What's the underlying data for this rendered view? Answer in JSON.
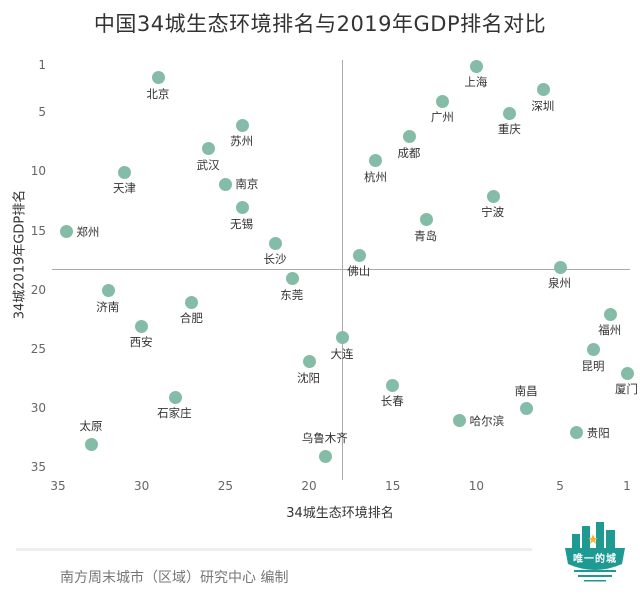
{
  "title": "中国34城生态环境排名与2019年GDP排名对比",
  "footer": {
    "source": "南方周末城市（区域）研究中心   编制",
    "logo_text": "唯一的城",
    "logo_icon": "city-skyline-logo"
  },
  "colors": {
    "dot": "#85bca7",
    "quadrant_line": "#aaaaaa",
    "logo_teal": "#1e9a93",
    "logo_star": "#f2b632"
  },
  "axes": {
    "x_label": "34城生态环境排名",
    "y_label": "34城2019年GDP排名",
    "x_ticks": [
      "35",
      "30",
      "25",
      "20",
      "15",
      "10",
      "5",
      "1"
    ],
    "y_ticks": [
      "1",
      "5",
      "10",
      "15",
      "20",
      "25",
      "30",
      "35"
    ]
  },
  "chart_data": {
    "type": "scatter",
    "title": "中国34城生态环境排名与2019年GDP排名对比",
    "xlabel": "34城生态环境排名",
    "ylabel": "34城2019年GDP排名",
    "xlim": [
      35,
      1
    ],
    "ylim": [
      35,
      1
    ],
    "x_reversed": true,
    "y_reversed": true,
    "x_ticks": [
      35,
      30,
      25,
      20,
      15,
      10,
      5,
      1
    ],
    "y_ticks": [
      1,
      5,
      10,
      15,
      20,
      25,
      30,
      35
    ],
    "quadrant_lines": {
      "x": 17.5,
      "y": 17.5
    },
    "grid": false,
    "legend": "none",
    "points": [
      {
        "city": "上海",
        "eco_rank": 10,
        "gdp_rank": 1
      },
      {
        "city": "北京",
        "eco_rank": 29,
        "gdp_rank": 2
      },
      {
        "city": "深圳",
        "eco_rank": 6,
        "gdp_rank": 3
      },
      {
        "city": "广州",
        "eco_rank": 12,
        "gdp_rank": 4
      },
      {
        "city": "重庆",
        "eco_rank": 8,
        "gdp_rank": 5
      },
      {
        "city": "苏州",
        "eco_rank": 24,
        "gdp_rank": 6
      },
      {
        "city": "成都",
        "eco_rank": 14,
        "gdp_rank": 7
      },
      {
        "city": "武汉",
        "eco_rank": 26,
        "gdp_rank": 8
      },
      {
        "city": "杭州",
        "eco_rank": 16,
        "gdp_rank": 9
      },
      {
        "city": "天津",
        "eco_rank": 31,
        "gdp_rank": 10
      },
      {
        "city": "南京",
        "eco_rank": 25,
        "gdp_rank": 11
      },
      {
        "city": "宁波",
        "eco_rank": 9,
        "gdp_rank": 12
      },
      {
        "city": "无锡",
        "eco_rank": 24,
        "gdp_rank": 13
      },
      {
        "city": "青岛",
        "eco_rank": 13,
        "gdp_rank": 14
      },
      {
        "city": "郑州",
        "eco_rank": 34.5,
        "gdp_rank": 15
      },
      {
        "city": "长沙",
        "eco_rank": 22,
        "gdp_rank": 16
      },
      {
        "city": "佛山",
        "eco_rank": 17,
        "gdp_rank": 17
      },
      {
        "city": "泉州",
        "eco_rank": 5,
        "gdp_rank": 18
      },
      {
        "city": "东莞",
        "eco_rank": 21,
        "gdp_rank": 19
      },
      {
        "city": "济南",
        "eco_rank": 32,
        "gdp_rank": 20
      },
      {
        "city": "合肥",
        "eco_rank": 27,
        "gdp_rank": 21
      },
      {
        "city": "福州",
        "eco_rank": 2,
        "gdp_rank": 22
      },
      {
        "city": "西安",
        "eco_rank": 30,
        "gdp_rank": 23
      },
      {
        "city": "大连",
        "eco_rank": 18,
        "gdp_rank": 24
      },
      {
        "city": "昆明",
        "eco_rank": 3,
        "gdp_rank": 25
      },
      {
        "city": "沈阳",
        "eco_rank": 20,
        "gdp_rank": 26
      },
      {
        "city": "厦门",
        "eco_rank": 1,
        "gdp_rank": 27
      },
      {
        "city": "长春",
        "eco_rank": 15,
        "gdp_rank": 28
      },
      {
        "city": "石家庄",
        "eco_rank": 28,
        "gdp_rank": 29
      },
      {
        "city": "南昌",
        "eco_rank": 7,
        "gdp_rank": 30
      },
      {
        "city": "哈尔滨",
        "eco_rank": 11,
        "gdp_rank": 31
      },
      {
        "city": "贵阳",
        "eco_rank": 4,
        "gdp_rank": 32
      },
      {
        "city": "太原",
        "eco_rank": 33,
        "gdp_rank": 33
      },
      {
        "city": "乌鲁木齐",
        "eco_rank": 19,
        "gdp_rank": 34
      }
    ]
  },
  "label_positions": {
    "上海": "below",
    "北京": "below",
    "深圳": "below",
    "广州": "below",
    "重庆": "below",
    "苏州": "below",
    "成都": "below",
    "武汉": "below",
    "杭州": "below",
    "天津": "below",
    "南京": "right",
    "宁波": "below",
    "无锡": "below",
    "青岛": "below",
    "郑州": "right",
    "长沙": "below",
    "佛山": "below",
    "泉州": "below",
    "东莞": "below",
    "济南": "below",
    "合肥": "below",
    "福州": "below",
    "西安": "below",
    "大连": "below",
    "昆明": "below",
    "沈阳": "below",
    "厦门": "below",
    "长春": "below",
    "石家庄": "below",
    "南昌": "above",
    "哈尔滨": "right",
    "贵阳": "right",
    "太原": "above",
    "乌鲁木齐": "above"
  }
}
